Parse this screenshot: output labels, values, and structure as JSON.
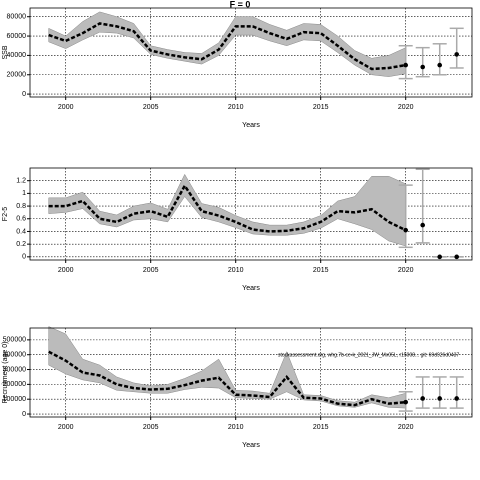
{
  "chart_data": [
    {
      "type": "line",
      "title": "F = 0",
      "ylabel": "SSB",
      "xlabel": "Years",
      "xlim": [
        1997.9,
        2023.9
      ],
      "xticks": [
        2000,
        2005,
        2010,
        2015,
        2020
      ],
      "ylim": [
        -3000,
        89000
      ],
      "yticks": [
        0,
        20000,
        40000,
        60000,
        80000
      ],
      "grid": true,
      "x": [
        1999,
        2000,
        2001,
        2002,
        2003,
        2004,
        2005,
        2006,
        2007,
        2008,
        2009,
        2010,
        2011,
        2012,
        2013,
        2014,
        2015,
        2016,
        2017,
        2018,
        2019,
        2020
      ],
      "series": [
        {
          "color": "#000000",
          "values": [
            61000,
            55000,
            63000,
            73000,
            70000,
            65000,
            45000,
            41000,
            38000,
            36000,
            46000,
            70000,
            70000,
            63000,
            57000,
            64000,
            63000,
            50000,
            36000,
            26000,
            27000,
            30000
          ],
          "upper": [
            68000,
            60000,
            75000,
            85000,
            80000,
            73000,
            50000,
            46000,
            43000,
            42000,
            53000,
            80000,
            80000,
            72000,
            66000,
            73000,
            72000,
            60000,
            45000,
            37000,
            40000,
            48000
          ],
          "lower": [
            54000,
            47000,
            56000,
            64000,
            63000,
            58000,
            41000,
            37000,
            34000,
            31000,
            40000,
            61000,
            61000,
            55000,
            50000,
            56000,
            55000,
            43000,
            30000,
            20000,
            18000,
            21000
          ]
        }
      ],
      "band_color": "#bbbbbb",
      "forecast": {
        "color": "#aaaaaa",
        "x": [
          2020,
          2021,
          2022,
          2023
        ],
        "values": [
          30000,
          28000,
          30000,
          41000
        ],
        "lower": [
          16000,
          18000,
          20000,
          27000
        ],
        "upper": [
          50000,
          48000,
          52000,
          68000
        ]
      }
    },
    {
      "type": "line",
      "ylabel": "F2-5",
      "xlabel": "Years",
      "xlim": [
        1997.9,
        2023.9
      ],
      "xticks": [
        2000,
        2005,
        2010,
        2015,
        2020
      ],
      "ylim": [
        -0.05,
        1.4
      ],
      "yticks": [
        0,
        0.2,
        0.4,
        0.6,
        0.8,
        1,
        1.2
      ],
      "grid": true,
      "x": [
        1999,
        2000,
        2001,
        2002,
        2003,
        2004,
        2005,
        2006,
        2007,
        2008,
        2009,
        2010,
        2011,
        2012,
        2013,
        2014,
        2015,
        2016,
        2017,
        2018,
        2019,
        2020
      ],
      "series": [
        {
          "color": "#000000",
          "values": [
            0.8,
            0.8,
            0.88,
            0.6,
            0.55,
            0.68,
            0.72,
            0.63,
            1.12,
            0.72,
            0.65,
            0.55,
            0.43,
            0.4,
            0.41,
            0.45,
            0.55,
            0.72,
            0.7,
            0.75,
            0.55,
            0.42
          ],
          "upper": [
            0.93,
            0.93,
            1.02,
            0.72,
            0.66,
            0.8,
            0.85,
            0.75,
            1.3,
            0.84,
            0.78,
            0.65,
            0.55,
            0.5,
            0.5,
            0.55,
            0.65,
            0.88,
            0.95,
            1.27,
            1.27,
            1.15
          ],
          "lower": [
            0.68,
            0.7,
            0.76,
            0.52,
            0.47,
            0.58,
            0.6,
            0.55,
            0.95,
            0.62,
            0.55,
            0.46,
            0.36,
            0.34,
            0.34,
            0.37,
            0.45,
            0.6,
            0.52,
            0.43,
            0.25,
            0.17
          ]
        }
      ],
      "band_color": "#bbbbbb",
      "forecast": {
        "color": "#aaaaaa",
        "x": [
          2020,
          2021,
          2022,
          2023
        ],
        "values": [
          0.42,
          0.5,
          0,
          0
        ],
        "lower": [
          0.15,
          0.22,
          0,
          0
        ],
        "upper": [
          1.13,
          1.38,
          0,
          0
        ]
      }
    },
    {
      "type": "line",
      "ylabel": "Recruitment (age 0)",
      "xlabel": "Years",
      "xlim": [
        1997.9,
        2023.9
      ],
      "xticks": [
        2000,
        2005,
        2010,
        2015,
        2020
      ],
      "ylim": [
        -20000,
        580000
      ],
      "yticks": [
        0,
        100000,
        200000,
        300000,
        400000,
        500000
      ],
      "grid": true,
      "annotation": "stockassessment.org, whg.7b-ce-k_2021_JW_Mx05L, r15008... git: 69d926d0437",
      "x": [
        1999,
        2000,
        2001,
        2002,
        2003,
        2004,
        2005,
        2006,
        2007,
        2008,
        2009,
        2010,
        2011,
        2012,
        2013,
        2014,
        2015,
        2016,
        2017,
        2018,
        2019,
        2020
      ],
      "series": [
        {
          "color": "#000000",
          "values": [
            420000,
            360000,
            280000,
            260000,
            200000,
            175000,
            165000,
            170000,
            195000,
            225000,
            245000,
            130000,
            125000,
            115000,
            250000,
            110000,
            105000,
            70000,
            60000,
            100000,
            70000,
            80000
          ],
          "upper": [
            590000,
            540000,
            370000,
            330000,
            250000,
            210000,
            190000,
            200000,
            240000,
            290000,
            370000,
            160000,
            155000,
            140000,
            420000,
            130000,
            125000,
            90000,
            80000,
            130000,
            110000,
            140000
          ],
          "lower": [
            330000,
            270000,
            230000,
            210000,
            160000,
            150000,
            140000,
            140000,
            165000,
            180000,
            175000,
            110000,
            105000,
            100000,
            150000,
            95000,
            88000,
            55000,
            45000,
            75000,
            45000,
            40000
          ]
        }
      ],
      "band_color": "#bbbbbb",
      "forecast": {
        "color": "#aaaaaa",
        "x": [
          2020,
          2021,
          2022,
          2023
        ],
        "values": [
          80000,
          105000,
          105000,
          105000
        ],
        "lower": [
          20000,
          40000,
          40000,
          40000
        ],
        "upper": [
          150000,
          250000,
          250000,
          250000
        ]
      }
    }
  ]
}
